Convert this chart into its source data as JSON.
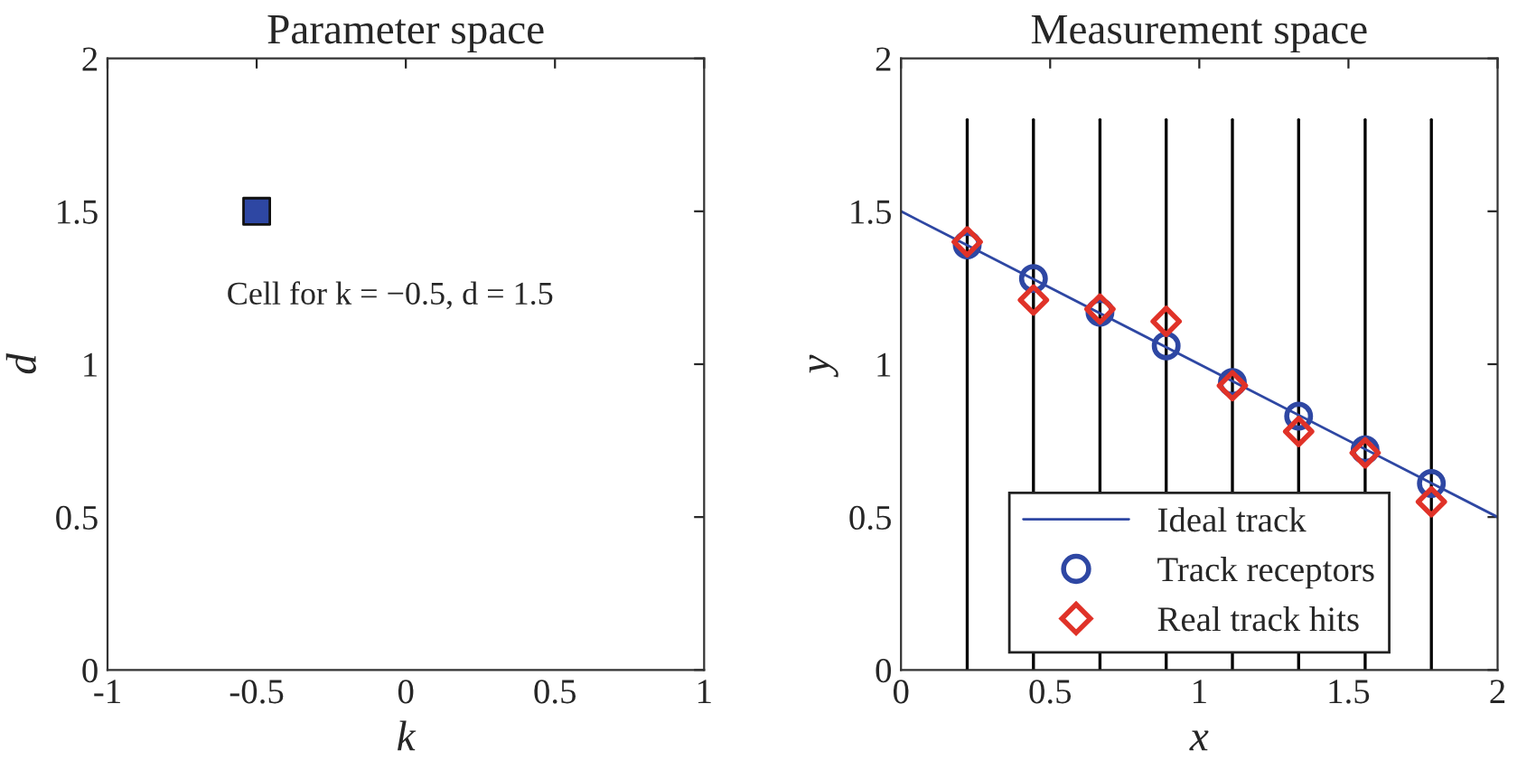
{
  "chart_data": [
    {
      "type": "scatter",
      "title": "Parameter space",
      "xlabel": "k",
      "ylabel": "d",
      "xlim": [
        -1,
        1
      ],
      "ylim": [
        0,
        2
      ],
      "xticks": [
        {
          "value": -1,
          "label": "-1"
        },
        {
          "value": -0.5,
          "label": "-0.5"
        },
        0,
        0.5,
        1
      ],
      "yticks": [
        0,
        0.5,
        1,
        1.5,
        2
      ],
      "series": [
        {
          "color": "#2e47a3",
          "x": [
            -0.5
          ],
          "values": [
            1.5
          ],
          "marker": "square"
        }
      ],
      "annotations": [
        {
          "text": "Cell for k = −0.5, d = 1.5",
          "x": -0.5,
          "y": 1.5
        }
      ],
      "grid": false
    },
    {
      "type": "line",
      "title": "Measurement space",
      "xlabel": "x",
      "ylabel": "y",
      "xlim": [
        0,
        2
      ],
      "ylim": [
        0,
        2
      ],
      "xticks": [
        0,
        0.5,
        1,
        1.5,
        2
      ],
      "yticks": [
        0,
        0.5,
        1,
        1.5,
        2
      ],
      "grid": false,
      "legend": "bottom",
      "series": [
        {
          "type": "line",
          "color": "#000000",
          "x": [
            0.222,
            0.222
          ],
          "values": [
            0,
            1.8
          ]
        },
        {
          "type": "line",
          "color": "#000000",
          "x": [
            0.444,
            0.444
          ],
          "values": [
            0,
            1.8
          ]
        },
        {
          "type": "line",
          "color": "#000000",
          "x": [
            0.667,
            0.667
          ],
          "values": [
            0,
            1.8
          ]
        },
        {
          "type": "line",
          "color": "#000000",
          "x": [
            0.889,
            0.889
          ],
          "values": [
            0,
            1.8
          ]
        },
        {
          "type": "line",
          "color": "#000000",
          "x": [
            1.111,
            1.111
          ],
          "values": [
            0,
            1.8
          ]
        },
        {
          "type": "line",
          "color": "#000000",
          "x": [
            1.333,
            1.333
          ],
          "values": [
            0,
            1.8
          ]
        },
        {
          "type": "line",
          "color": "#000000",
          "x": [
            1.556,
            1.556
          ],
          "values": [
            0,
            1.8
          ]
        },
        {
          "type": "line",
          "color": "#000000",
          "x": [
            1.778,
            1.778
          ],
          "values": [
            0,
            1.8
          ]
        },
        {
          "type": "line",
          "name": "Ideal track",
          "color": "#2e47a3",
          "x": [
            0,
            2
          ],
          "values": [
            1.5,
            0.5
          ]
        },
        {
          "type": "scatter",
          "name": "Track receptors",
          "color": "#2e47a3",
          "marker": "circle",
          "x": [
            0.222,
            0.444,
            0.667,
            0.889,
            1.111,
            1.333,
            1.556,
            1.778
          ],
          "values": [
            1.39,
            1.28,
            1.17,
            1.06,
            0.94,
            0.83,
            0.72,
            0.61
          ]
        },
        {
          "type": "scatter",
          "name": "Real track hits",
          "color": "#e03228",
          "marker": "diamond",
          "x": [
            0.222,
            0.444,
            0.667,
            0.889,
            1.111,
            1.333,
            1.556,
            1.778
          ],
          "values": [
            1.4,
            1.21,
            1.18,
            1.14,
            0.93,
            0.78,
            0.71,
            0.55
          ]
        }
      ]
    }
  ]
}
